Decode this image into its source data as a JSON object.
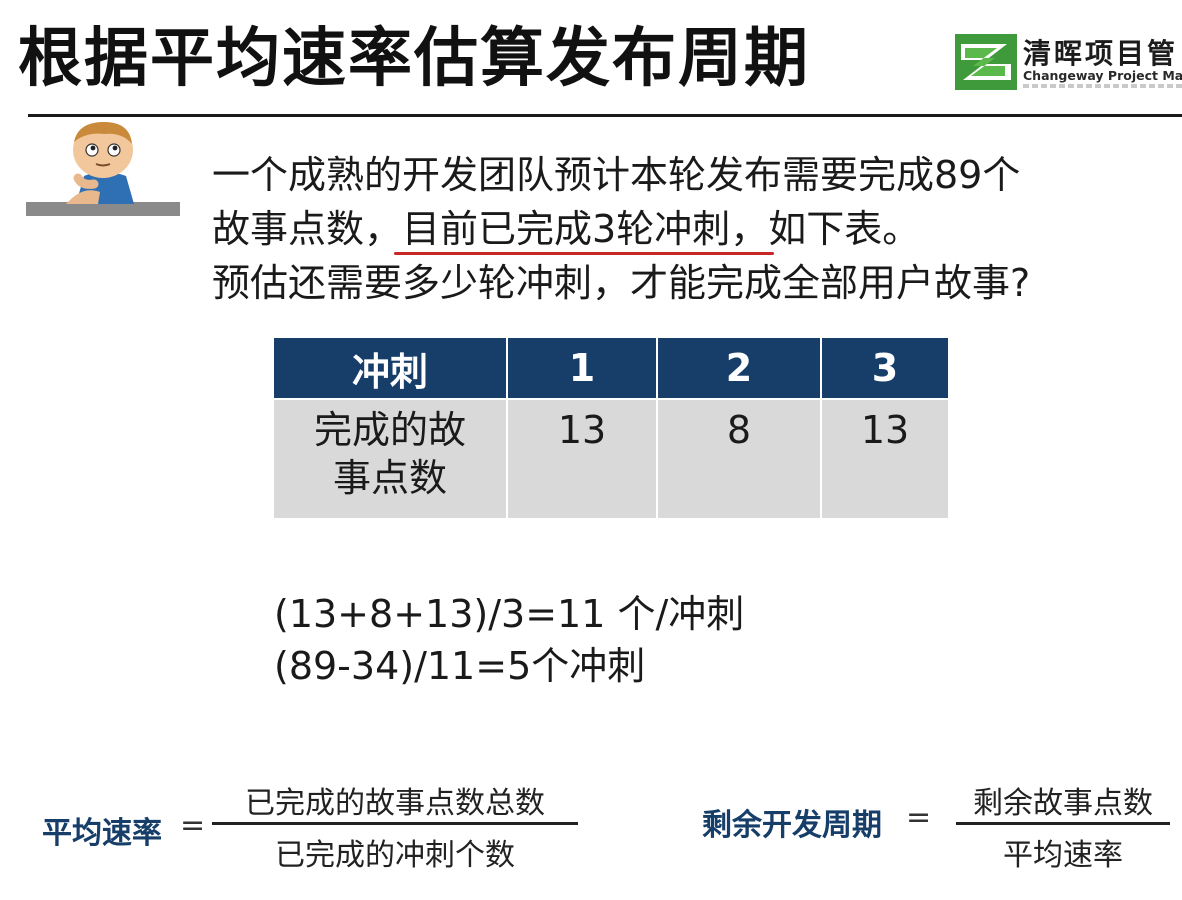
{
  "header": {
    "title": "根据平均速率估算发布周期",
    "logo_cn": "清晖项目管",
    "logo_en": "Changeway Project Manag"
  },
  "question": {
    "line1": "一个成熟的开发团队预计本轮发布需要完成89个",
    "line2_pre": "故事点数，",
    "line2_underlined": "目前已完成3轮冲刺，",
    "line2_post": "如下表。",
    "line3": "预估还需要多少轮冲刺，才能完成全部用户故事?"
  },
  "table": {
    "header_label": "冲刺",
    "sprints": [
      "1",
      "2",
      "3"
    ],
    "row_label_line1": "完成的故",
    "row_label_line2": "事点数",
    "values": [
      "13",
      "8",
      "13"
    ]
  },
  "calculation": {
    "line1": "(13+8+13)/3=11 个/冲刺",
    "line2": "(89-34)/11=5个冲刺"
  },
  "formulas": {
    "velocity": {
      "label": "平均速率",
      "equals": "=",
      "numerator": "已完成的故事点数总数",
      "denominator": "已完成的冲刺个数"
    },
    "remaining": {
      "label": "剩余开发周期",
      "equals": "=",
      "numerator": "剩余故事点数",
      "denominator": "平均速率"
    }
  },
  "colors": {
    "table_header": "#163e69",
    "table_body": "#d9d9d9",
    "underline": "#c62828",
    "formula_label": "#163e69"
  }
}
